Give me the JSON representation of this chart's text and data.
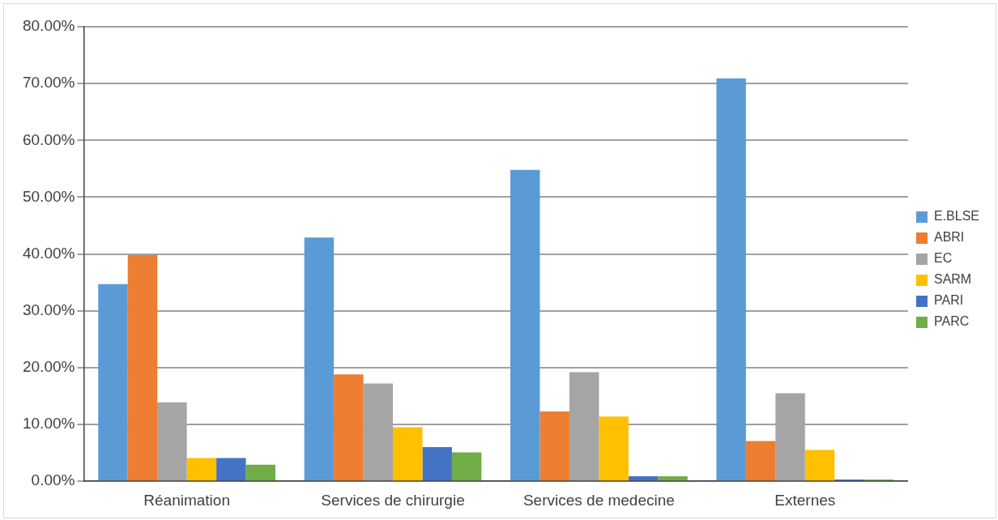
{
  "chart_data": {
    "type": "bar",
    "categories": [
      "Réanimation",
      "Services de chirurgie",
      "Services de medecine",
      "Externes"
    ],
    "series": [
      {
        "name": "E.BLSE",
        "color": "#5b9bd5",
        "values": [
          34.7,
          42.9,
          54.8,
          70.9
        ]
      },
      {
        "name": "ABRI",
        "color": "#ed7d31",
        "values": [
          39.8,
          18.8,
          12.3,
          7.1
        ]
      },
      {
        "name": "EC",
        "color": "#a5a5a5",
        "values": [
          13.9,
          17.2,
          19.2,
          15.5
        ]
      },
      {
        "name": "SARM",
        "color": "#ffc000",
        "values": [
          4.1,
          9.5,
          11.4,
          5.5
        ]
      },
      {
        "name": "PARI",
        "color": "#4472c4",
        "values": [
          4.1,
          6.0,
          0.9,
          0.3
        ]
      },
      {
        "name": "PARC",
        "color": "#70ad47",
        "values": [
          2.9,
          5.1,
          0.9,
          0.3
        ]
      }
    ],
    "ylim": [
      0,
      80
    ],
    "yticks": [
      {
        "value": 0,
        "label": "0.00%"
      },
      {
        "value": 10,
        "label": "10.00%"
      },
      {
        "value": 20,
        "label": "20.00%"
      },
      {
        "value": 30,
        "label": "30.00%"
      },
      {
        "value": 40,
        "label": "40.00%"
      },
      {
        "value": 50,
        "label": "50.00%"
      },
      {
        "value": 60,
        "label": "60.00%"
      },
      {
        "value": 70,
        "label": "70.00%"
      },
      {
        "value": 80,
        "label": "80.00%"
      }
    ],
    "grid": "y",
    "legend": "right"
  }
}
